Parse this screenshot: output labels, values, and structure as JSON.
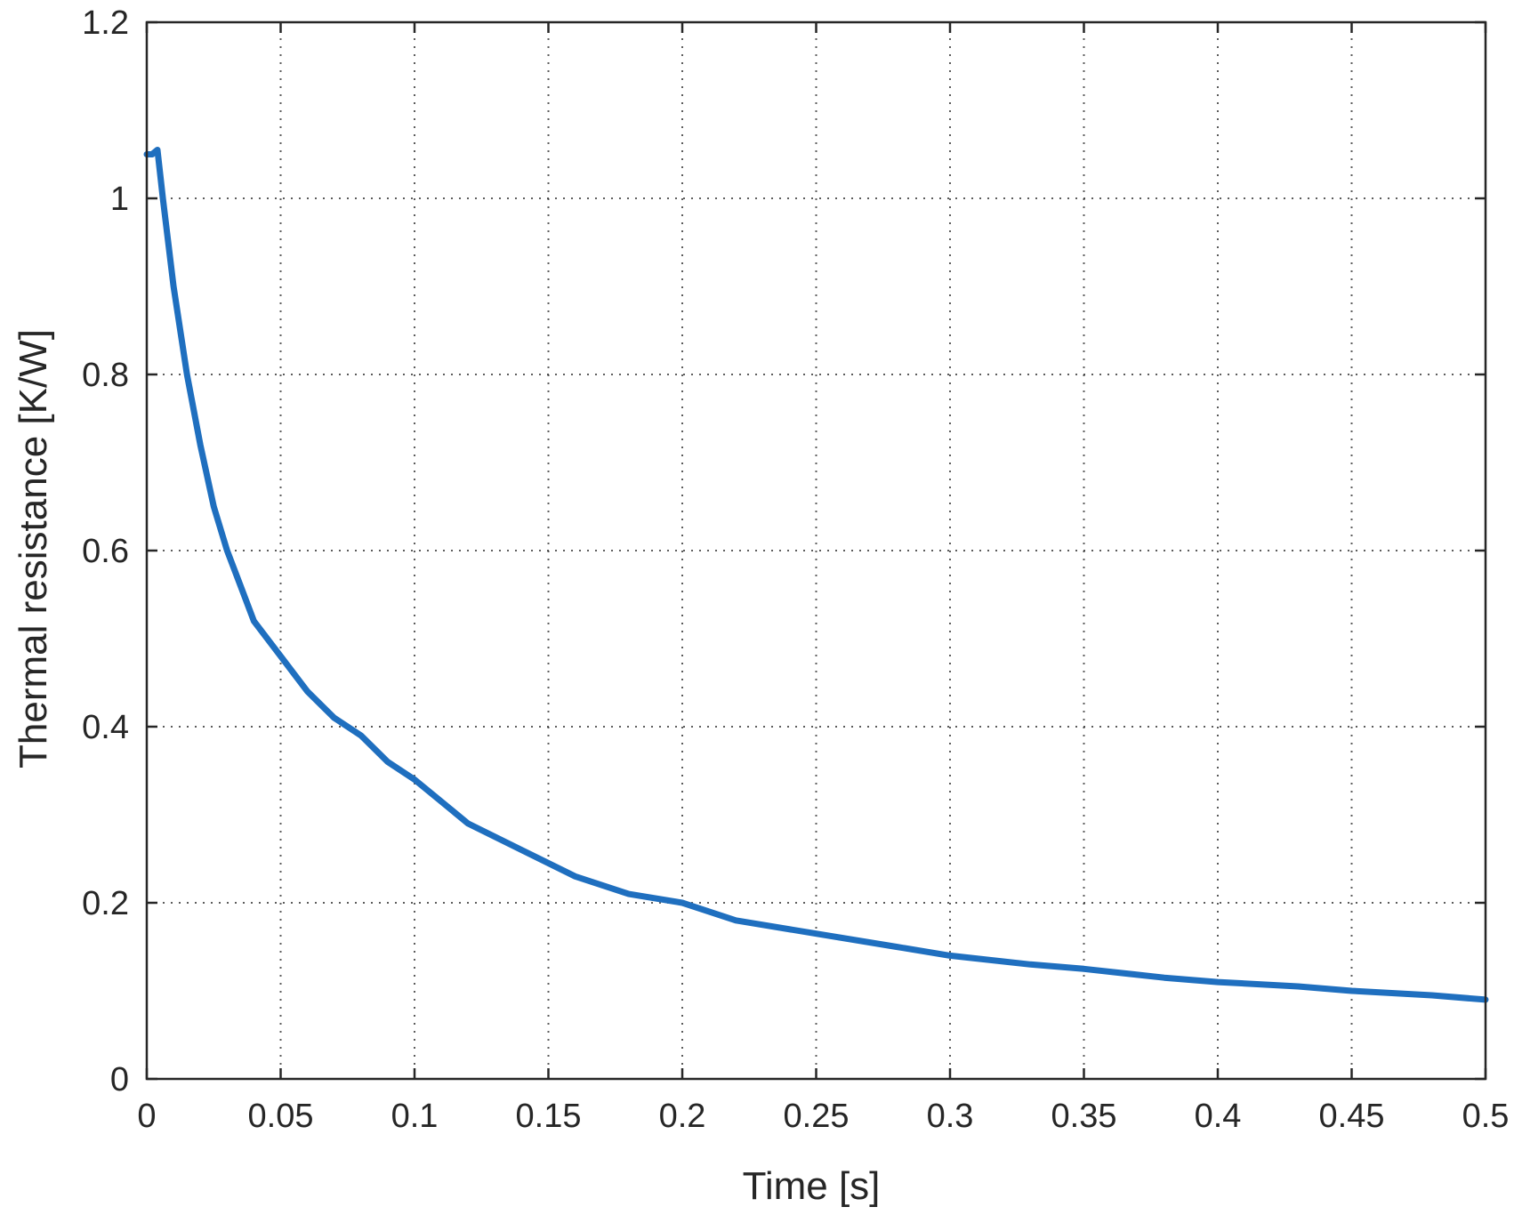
{
  "chart_data": {
    "type": "line",
    "title": "",
    "xlabel": "Time [s]",
    "ylabel": "Thermal resistance [K/W]",
    "xlim": [
      0,
      0.5
    ],
    "ylim": [
      0,
      1.2
    ],
    "xticks": [
      0,
      0.05,
      0.1,
      0.15,
      0.2,
      0.25,
      0.3,
      0.35,
      0.4,
      0.45,
      0.5
    ],
    "xtick_labels": [
      "0",
      "0.05",
      "0.1",
      "0.15",
      "0.2",
      "0.25",
      "0.3",
      "0.35",
      "0.4",
      "0.45",
      "0.5"
    ],
    "yticks": [
      0,
      0.2,
      0.4,
      0.6,
      0.8,
      1,
      1.2
    ],
    "ytick_labels": [
      "0",
      "0.2",
      "0.4",
      "0.6",
      "0.8",
      "1",
      "1.2"
    ],
    "grid": true,
    "legend": "none",
    "series": [
      {
        "color": "#1f6fbf",
        "x": [
          0.0,
          0.002,
          0.004,
          0.006,
          0.01,
          0.015,
          0.02,
          0.025,
          0.03,
          0.035,
          0.04,
          0.05,
          0.06,
          0.07,
          0.08,
          0.09,
          0.1,
          0.12,
          0.14,
          0.16,
          0.18,
          0.2,
          0.22,
          0.25,
          0.28,
          0.3,
          0.33,
          0.35,
          0.38,
          0.4,
          0.43,
          0.45,
          0.48,
          0.5
        ],
        "y": [
          1.05,
          1.05,
          1.055,
          1.0,
          0.9,
          0.8,
          0.72,
          0.65,
          0.6,
          0.56,
          0.52,
          0.48,
          0.44,
          0.41,
          0.39,
          0.36,
          0.34,
          0.29,
          0.26,
          0.23,
          0.21,
          0.2,
          0.18,
          0.165,
          0.15,
          0.14,
          0.13,
          0.125,
          0.115,
          0.11,
          0.105,
          0.1,
          0.095,
          0.09
        ]
      }
    ]
  }
}
